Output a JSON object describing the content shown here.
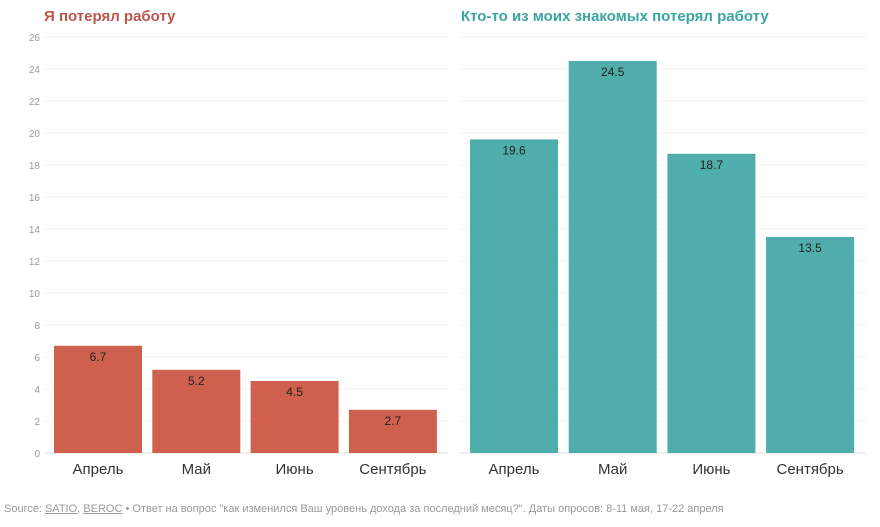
{
  "chart_data": [
    {
      "type": "bar",
      "title": "Я потерял работу",
      "categories": [
        "Апрель",
        "Май",
        "Июнь",
        "Сентябрь"
      ],
      "values": [
        6.7,
        5.2,
        4.5,
        2.7
      ],
      "ylim": [
        0,
        26
      ],
      "yticks": [
        0,
        2,
        4,
        6,
        8,
        10,
        12,
        14,
        16,
        18,
        20,
        22,
        24,
        26
      ],
      "grid": true,
      "color": "#d0604e",
      "title_color": "#b9574d"
    },
    {
      "type": "bar",
      "title": "Кто-то из моих знакомых потерял работу",
      "categories": [
        "Апрель",
        "Май",
        "Июнь",
        "Сентябрь"
      ],
      "values": [
        19.6,
        24.5,
        18.7,
        13.5
      ],
      "ylim": [
        0,
        26
      ],
      "grid": true,
      "color": "#4fadab",
      "title_color": "#3aa5a3"
    }
  ],
  "footer": {
    "prefix": "Source: ",
    "link1": "SATIO",
    "sep": ", ",
    "link2": "BEROC",
    "text": " • Ответ на вопрос \"как изменился Ваш уровень дохода за последний месяц?\". Даты опросов: 8-11 мая, 17-22 апреля"
  }
}
